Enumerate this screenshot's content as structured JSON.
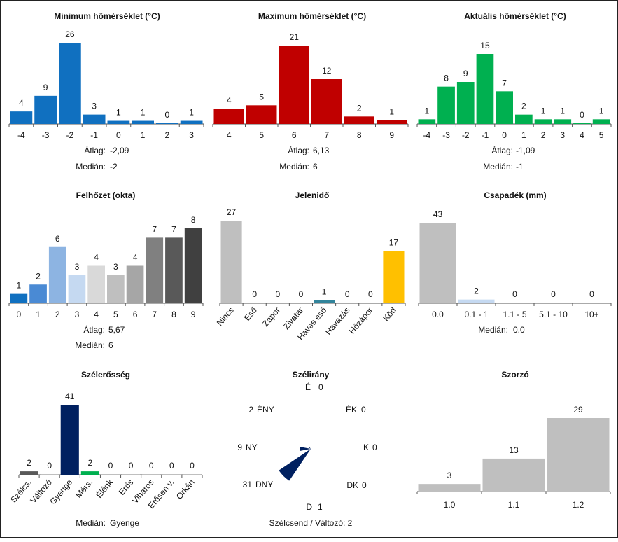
{
  "chart_data": [
    {
      "id": "min",
      "type": "bar",
      "title": "Minimum hőmérséklet (°C)",
      "color": "#1070c0",
      "categories": [
        "-4",
        "-3",
        "-2",
        "-1",
        "0",
        "1",
        "2",
        "3"
      ],
      "values": [
        4,
        9,
        26,
        3,
        1,
        1,
        0,
        1
      ],
      "ylim": [
        0,
        26
      ],
      "stats": [
        {
          "label": "Átlag:",
          "value": "-2,09"
        },
        {
          "label": "Medián:",
          "value": "-2"
        }
      ]
    },
    {
      "id": "max",
      "type": "bar",
      "title": "Maximum hőmérséklet (°C)",
      "color": "#c00000",
      "categories": [
        "4",
        "5",
        "6",
        "7",
        "8",
        "9"
      ],
      "values": [
        4,
        5,
        21,
        12,
        2,
        1
      ],
      "ylim": [
        0,
        21
      ],
      "stats": [
        {
          "label": "Átlag:",
          "value": "6,13"
        },
        {
          "label": "Medián:",
          "value": "6"
        }
      ]
    },
    {
      "id": "act",
      "type": "bar",
      "title": "Aktuális hőmérséklet (°C)",
      "color": "#00b050",
      "categories": [
        "-4",
        "-3",
        "-2",
        "-1",
        "0",
        "1",
        "2",
        "3",
        "4",
        "5"
      ],
      "values": [
        1,
        8,
        9,
        15,
        7,
        2,
        1,
        1,
        0,
        1
      ],
      "ylim": [
        0,
        15
      ],
      "stats": [
        {
          "label": "Átlag:",
          "value": "-1,09"
        },
        {
          "label": "Medián:",
          "value": "-1"
        }
      ]
    },
    {
      "id": "cloud",
      "type": "bar",
      "title": "Felhőzet (okta)",
      "colors": [
        "#1070c0",
        "#4a8ad4",
        "#8db4e2",
        "#c5d9f1",
        "#d9d9d9",
        "#bfbfbf",
        "#a6a6a6",
        "#808080",
        "#595959",
        "#404040"
      ],
      "categories": [
        "0",
        "1",
        "2",
        "3",
        "4",
        "5",
        "6",
        "7",
        "8",
        "9"
      ],
      "values": [
        1,
        2,
        6,
        3,
        4,
        3,
        4,
        7,
        7,
        8
      ],
      "ylim": [
        0,
        8
      ],
      "stats": [
        {
          "label": "Átlag:",
          "value": "5,67"
        },
        {
          "label": "Medián:",
          "value": "6"
        }
      ]
    },
    {
      "id": "wx",
      "type": "bar",
      "title": "Jelenidő",
      "colors": [
        "#bfbfbf",
        "#bfbfbf",
        "#bfbfbf",
        "#bfbfbf",
        "#31849b",
        "#bfbfbf",
        "#bfbfbf",
        "#ffc000"
      ],
      "categories": [
        "Nincs",
        "Eső",
        "Zápor",
        "Zivatar",
        "Havas eső",
        "Havazás",
        "Hózápor",
        "Köd"
      ],
      "values": [
        27,
        0,
        0,
        0,
        1,
        0,
        0,
        17
      ],
      "ylim": [
        0,
        27
      ],
      "rotate_labels": true,
      "stats": []
    },
    {
      "id": "precip",
      "type": "bar",
      "title": "Csapadék (mm)",
      "colors": [
        "#bfbfbf",
        "#c5d9f1",
        "#bfbfbf",
        "#bfbfbf",
        "#bfbfbf"
      ],
      "categories": [
        "0.0",
        "0.1 - 1",
        "1.1 - 5",
        "5.1 - 10",
        "10+"
      ],
      "values": [
        43,
        2,
        0,
        0,
        0
      ],
      "ylim": [
        0,
        43
      ],
      "stats": [
        {
          "label": "Medián:",
          "value": "0.0"
        }
      ]
    },
    {
      "id": "wind",
      "type": "bar",
      "title": "Szélerősség",
      "colors": [
        "#595959",
        "#bfbfbf",
        "#002060",
        "#00b050",
        "#bfbfbf",
        "#bfbfbf",
        "#bfbfbf",
        "#bfbfbf",
        "#bfbfbf"
      ],
      "categories": [
        "Szélcs.",
        "Változó",
        "Gyenge",
        "Mérs.",
        "Élénk",
        "Erős",
        "Viharos",
        "Erősen v.",
        "Orkán"
      ],
      "values": [
        2,
        0,
        41,
        2,
        0,
        0,
        0,
        0,
        0
      ],
      "ylim": [
        0,
        41
      ],
      "rotate_labels": true,
      "stats": [
        {
          "label": "Medián:",
          "value": "Gyenge"
        }
      ]
    },
    {
      "id": "dir",
      "type": "windrose",
      "title": "Szélirány",
      "color": "#002060",
      "directions": [
        {
          "label": "É",
          "count": 0
        },
        {
          "label": "ÉK",
          "count": 0
        },
        {
          "label": "K",
          "count": 0
        },
        {
          "label": "DK",
          "count": 0
        },
        {
          "label": "D",
          "count": 1
        },
        {
          "label": "DNY",
          "count": 31
        },
        {
          "label": "NY",
          "count": 9
        },
        {
          "label": "ÉNY",
          "count": 2
        }
      ],
      "footer": "Szélcsend / Változó: 2"
    },
    {
      "id": "mult",
      "type": "bar",
      "title": "Szorzó",
      "color": "#bfbfbf",
      "categories": [
        "1.0",
        "1.1",
        "1.2"
      ],
      "values": [
        3,
        13,
        29
      ],
      "ylim": [
        0,
        29
      ],
      "stats": []
    }
  ]
}
